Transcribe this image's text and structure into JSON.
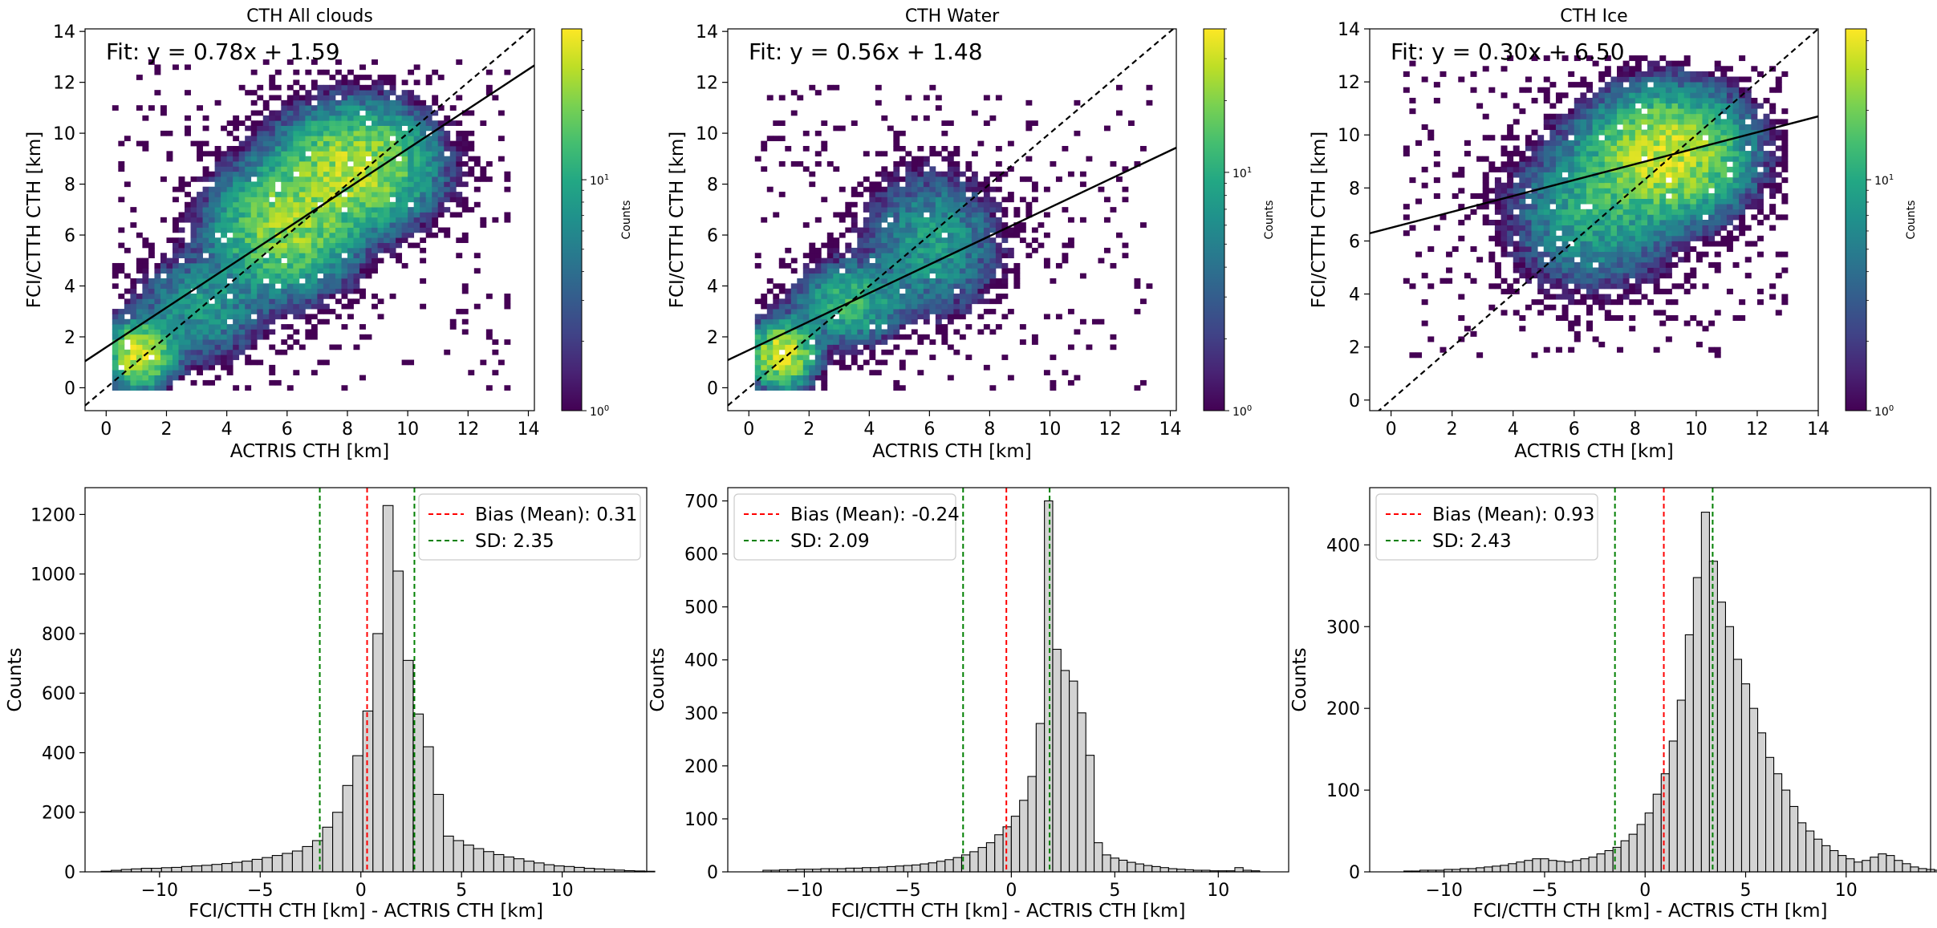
{
  "chart_data": [
    {
      "type": "heatmap",
      "title": "CTH All clouds",
      "xlabel": "ACTRIS CTH [km]",
      "ylabel": "FCI/CTTH CTH [km]",
      "xlim": [
        -0.7,
        14.2
      ],
      "ylim": [
        -0.9,
        14.1
      ],
      "xticks": [
        0,
        2,
        4,
        6,
        8,
        10,
        12,
        14
      ],
      "yticks": [
        0,
        2,
        4,
        6,
        8,
        10,
        12,
        14
      ],
      "fit_text": "Fit: y = 0.78x + 1.59",
      "fit": {
        "slope": 0.78,
        "intercept": 1.59
      },
      "one_to_one_line": true,
      "colorbar": {
        "label": "Counts",
        "scale": "log",
        "ticks": [
          "10^0",
          "10^1"
        ],
        "tick_values": [
          1,
          10
        ],
        "max": 45
      },
      "density": {
        "x_range": [
          0.2,
          13.2
        ],
        "y_range": [
          -0.1,
          12.8
        ],
        "clusters": [
          {
            "x": 1.0,
            "y": 1.2,
            "spread": [
              0.6,
              0.7
            ],
            "peak": 35
          },
          {
            "x": 5.8,
            "y": 6.2,
            "spread": [
              1.3,
              1.4
            ],
            "peak": 25
          },
          {
            "x": 8.2,
            "y": 8.6,
            "spread": [
              1.4,
              1.3
            ],
            "peak": 30
          },
          {
            "x": 3.0,
            "y": 3.0,
            "spread": [
              1.2,
              1.2
            ],
            "peak": 8
          }
        ]
      }
    },
    {
      "type": "heatmap",
      "title": "CTH Water",
      "xlabel": "ACTRIS CTH [km]",
      "ylabel": "FCI/CTTH CTH [km]",
      "xlim": [
        -0.7,
        14.2
      ],
      "ylim": [
        -0.9,
        14.1
      ],
      "xticks": [
        0,
        2,
        4,
        6,
        8,
        10,
        12,
        14
      ],
      "yticks": [
        0,
        2,
        4,
        6,
        8,
        10,
        12,
        14
      ],
      "fit_text": "Fit: y = 0.56x + 1.48",
      "fit": {
        "slope": 0.56,
        "intercept": 1.48
      },
      "one_to_one_line": true,
      "colorbar": {
        "label": "Counts",
        "scale": "log",
        "ticks": [
          "10^0",
          "10^1"
        ],
        "tick_values": [
          1,
          10
        ],
        "max": 40
      },
      "density": {
        "x_range": [
          0.2,
          13.2
        ],
        "y_range": [
          -0.1,
          11.8
        ],
        "clusters": [
          {
            "x": 1.0,
            "y": 1.2,
            "spread": [
              0.6,
              0.7
            ],
            "peak": 35
          },
          {
            "x": 3.2,
            "y": 3.2,
            "spread": [
              1.0,
              0.9
            ],
            "peak": 12
          },
          {
            "x": 6.0,
            "y": 5.6,
            "spread": [
              1.3,
              1.6
            ],
            "peak": 8
          }
        ]
      }
    },
    {
      "type": "heatmap",
      "title": "CTH Ice",
      "xlabel": "ACTRIS CTH [km]",
      "ylabel": "FCI/CTTH CTH [km]",
      "xlim": [
        -0.7,
        14.0
      ],
      "ylim": [
        -0.4,
        14.0
      ],
      "xticks": [
        0,
        2,
        4,
        6,
        8,
        10,
        12,
        14
      ],
      "yticks": [
        0,
        2,
        4,
        6,
        8,
        10,
        12,
        14
      ],
      "fit_text": "Fit: y = 0.30x + 6.50",
      "fit": {
        "slope": 0.3,
        "intercept": 6.5
      },
      "one_to_one_line": true,
      "colorbar": {
        "label": "Counts",
        "scale": "log",
        "ticks": [
          "10^0",
          "10^1"
        ],
        "tick_values": [
          1,
          10
        ],
        "max": 45
      },
      "density": {
        "x_range": [
          0.4,
          12.8
        ],
        "y_range": [
          1.6,
          12.8
        ],
        "clusters": [
          {
            "x": 9.0,
            "y": 9.2,
            "spread": [
              1.4,
              1.3
            ],
            "peak": 35
          },
          {
            "x": 6.5,
            "y": 7.0,
            "spread": [
              1.5,
              1.6
            ],
            "peak": 10
          }
        ]
      }
    },
    {
      "type": "histogram",
      "xlabel": "FCI/CTTH CTH [km] - ACTRIS CTH [km]",
      "ylabel": "Counts",
      "xlim": [
        -13.7,
        14.2
      ],
      "ylim": [
        0,
        1290
      ],
      "xticks": [
        -10,
        -5,
        0,
        5,
        10
      ],
      "yticks": [
        0,
        200,
        400,
        600,
        800,
        1000,
        1200
      ],
      "bin_start": -12.9,
      "bin_width": 0.5,
      "values": [
        2,
        5,
        8,
        10,
        12,
        12,
        14,
        15,
        18,
        20,
        22,
        25,
        28,
        32,
        36,
        42,
        48,
        55,
        62,
        70,
        85,
        105,
        150,
        200,
        290,
        390,
        540,
        800,
        1230,
        1010,
        710,
        530,
        420,
        260,
        120,
        105,
        90,
        78,
        68,
        58,
        50,
        44,
        36,
        30,
        24,
        20,
        18,
        15,
        12,
        10,
        8,
        6,
        4,
        3,
        2
      ],
      "bias": {
        "label": "Bias (Mean): 0.31",
        "value": 0.31,
        "color": "#ff0000"
      },
      "sd": {
        "label": "SD: 2.35",
        "value": 2.35,
        "color": "#008000"
      },
      "legend": "top-right"
    },
    {
      "type": "histogram",
      "xlabel": "FCI/CTTH CTH [km] - ACTRIS CTH [km]",
      "ylabel": "Counts",
      "xlim": [
        -13.7,
        13.4
      ],
      "ylim": [
        0,
        725
      ],
      "xticks": [
        -10,
        -5,
        0,
        5,
        10
      ],
      "yticks": [
        0,
        100,
        200,
        300,
        400,
        500,
        600,
        700
      ],
      "bin_start": -12.0,
      "bin_width": 0.4,
      "values": [
        3,
        3,
        4,
        4,
        5,
        5,
        5,
        6,
        6,
        6,
        7,
        7,
        8,
        8,
        9,
        10,
        11,
        12,
        13,
        15,
        17,
        20,
        23,
        27,
        32,
        38,
        46,
        55,
        70,
        85,
        105,
        135,
        180,
        280,
        700,
        420,
        380,
        360,
        300,
        220,
        55,
        32,
        26,
        22,
        18,
        15,
        12,
        10,
        8,
        6,
        5,
        4,
        3,
        3,
        2,
        2,
        2,
        8,
        3,
        2
      ],
      "bias": {
        "label": "Bias (Mean): -0.24",
        "value": -0.24,
        "color": "#ff0000"
      },
      "sd": {
        "label": "SD: 2.09",
        "value": 2.09,
        "color": "#008000"
      },
      "legend": "top-left"
    },
    {
      "type": "histogram",
      "xlabel": "FCI/CTTH CTH [km] - ACTRIS CTH [km]",
      "ylabel": "Counts",
      "xlim": [
        -13.7,
        14.2
      ],
      "ylim": [
        0,
        470
      ],
      "xticks": [
        -10,
        -5,
        0,
        5,
        10
      ],
      "yticks": [
        0,
        100,
        200,
        300,
        400
      ],
      "bin_start": -12.0,
      "bin_width": 0.4,
      "values": [
        1,
        1,
        2,
        2,
        2,
        3,
        3,
        4,
        4,
        5,
        6,
        7,
        8,
        10,
        12,
        14,
        16,
        16,
        14,
        13,
        12,
        14,
        16,
        18,
        22,
        26,
        30,
        38,
        46,
        58,
        72,
        95,
        120,
        160,
        210,
        290,
        360,
        440,
        380,
        330,
        300,
        260,
        230,
        200,
        170,
        140,
        120,
        100,
        80,
        60,
        50,
        40,
        32,
        26,
        20,
        16,
        12,
        14,
        18,
        22,
        20,
        14,
        10,
        6,
        4,
        3,
        2,
        2,
        1,
        1
      ],
      "bias": {
        "label": "Bias (Mean): 0.93",
        "value": 0.93,
        "color": "#ff0000"
      },
      "sd": {
        "label": "SD: 2.43",
        "value": 2.43,
        "color": "#008000"
      },
      "legend": "top-left"
    }
  ]
}
